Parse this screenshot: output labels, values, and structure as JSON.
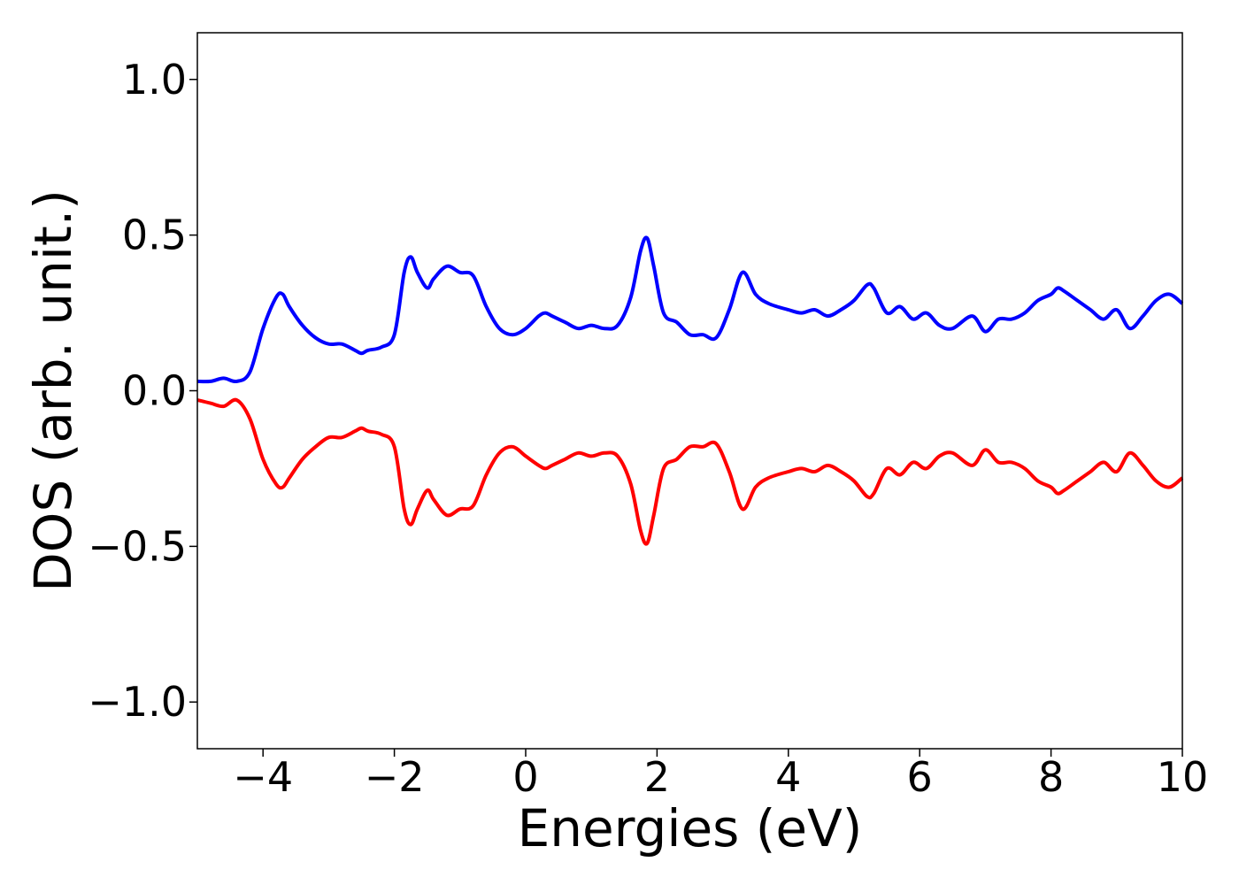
{
  "chart_data": {
    "type": "line",
    "title": "",
    "xlabel": "Energies (eV)",
    "ylabel": "DOS (arb. unit.)",
    "xlim": [
      -5,
      10
    ],
    "ylim": [
      -1.15,
      1.15
    ],
    "x_ticks": [
      -4,
      -2,
      0,
      2,
      4,
      6,
      8,
      10
    ],
    "x_tick_labels": [
      "−4",
      "−2",
      "0",
      "2",
      "4",
      "6",
      "8",
      "10"
    ],
    "y_ticks": [
      1.0,
      0.5,
      0.0,
      -0.5,
      -1.0
    ],
    "y_tick_labels": [
      "1.0",
      "0.5",
      "0.0",
      "−0.5",
      "−1.0"
    ],
    "grid": false,
    "legend": "none",
    "series": [
      {
        "color": "#0000ff",
        "x": [
          -5.0,
          -4.8,
          -4.6,
          -4.4,
          -4.2,
          -4.0,
          -3.8,
          -3.7,
          -3.6,
          -3.4,
          -3.2,
          -3.0,
          -2.8,
          -2.6,
          -2.5,
          -2.4,
          -2.2,
          -2.0,
          -1.85,
          -1.75,
          -1.65,
          -1.5,
          -1.4,
          -1.2,
          -1.0,
          -0.8,
          -0.6,
          -0.4,
          -0.2,
          0.0,
          0.2,
          0.3,
          0.4,
          0.6,
          0.8,
          1.0,
          1.2,
          1.4,
          1.6,
          1.75,
          1.85,
          1.95,
          2.1,
          2.3,
          2.5,
          2.7,
          2.9,
          3.1,
          3.3,
          3.5,
          3.7,
          4.0,
          4.2,
          4.4,
          4.6,
          4.8,
          5.0,
          5.2,
          5.3,
          5.5,
          5.7,
          5.9,
          6.1,
          6.3,
          6.5,
          6.8,
          7.0,
          7.2,
          7.4,
          7.6,
          7.8,
          8.0,
          8.1,
          8.2,
          8.4,
          8.6,
          8.8,
          9.0,
          9.2,
          9.4,
          9.6,
          9.8,
          10.0
        ],
        "values": [
          0.03,
          0.03,
          0.04,
          0.03,
          0.06,
          0.2,
          0.3,
          0.31,
          0.27,
          0.21,
          0.17,
          0.15,
          0.15,
          0.13,
          0.12,
          0.13,
          0.14,
          0.18,
          0.38,
          0.43,
          0.38,
          0.33,
          0.36,
          0.4,
          0.38,
          0.37,
          0.27,
          0.2,
          0.18,
          0.2,
          0.24,
          0.25,
          0.24,
          0.22,
          0.2,
          0.21,
          0.2,
          0.21,
          0.3,
          0.45,
          0.49,
          0.4,
          0.25,
          0.22,
          0.18,
          0.18,
          0.17,
          0.26,
          0.38,
          0.31,
          0.28,
          0.26,
          0.25,
          0.26,
          0.24,
          0.26,
          0.29,
          0.34,
          0.33,
          0.25,
          0.27,
          0.23,
          0.25,
          0.21,
          0.2,
          0.24,
          0.19,
          0.23,
          0.23,
          0.25,
          0.29,
          0.31,
          0.33,
          0.32,
          0.29,
          0.26,
          0.23,
          0.26,
          0.2,
          0.24,
          0.29,
          0.31,
          0.28
        ]
      },
      {
        "color": "#ff0000",
        "x": [
          -5.0,
          -4.8,
          -4.6,
          -4.4,
          -4.2,
          -4.0,
          -3.8,
          -3.7,
          -3.6,
          -3.4,
          -3.2,
          -3.0,
          -2.8,
          -2.6,
          -2.5,
          -2.4,
          -2.2,
          -2.0,
          -1.85,
          -1.75,
          -1.65,
          -1.5,
          -1.4,
          -1.2,
          -1.0,
          -0.8,
          -0.6,
          -0.4,
          -0.2,
          0.0,
          0.2,
          0.3,
          0.4,
          0.6,
          0.8,
          1.0,
          1.2,
          1.4,
          1.6,
          1.75,
          1.85,
          1.95,
          2.1,
          2.3,
          2.5,
          2.7,
          2.9,
          3.1,
          3.3,
          3.5,
          3.7,
          4.0,
          4.2,
          4.4,
          4.6,
          4.8,
          5.0,
          5.2,
          5.3,
          5.5,
          5.7,
          5.9,
          6.1,
          6.3,
          6.5,
          6.8,
          7.0,
          7.2,
          7.4,
          7.6,
          7.8,
          8.0,
          8.1,
          8.2,
          8.4,
          8.6,
          8.8,
          9.0,
          9.2,
          9.4,
          9.6,
          9.8,
          10.0
        ],
        "values": [
          -0.03,
          -0.04,
          -0.05,
          -0.03,
          -0.09,
          -0.22,
          -0.3,
          -0.31,
          -0.28,
          -0.22,
          -0.18,
          -0.15,
          -0.15,
          -0.13,
          -0.12,
          -0.13,
          -0.14,
          -0.18,
          -0.38,
          -0.43,
          -0.38,
          -0.32,
          -0.35,
          -0.4,
          -0.38,
          -0.37,
          -0.27,
          -0.2,
          -0.18,
          -0.21,
          -0.24,
          -0.25,
          -0.24,
          -0.22,
          -0.2,
          -0.21,
          -0.2,
          -0.21,
          -0.3,
          -0.45,
          -0.49,
          -0.4,
          -0.25,
          -0.22,
          -0.18,
          -0.18,
          -0.17,
          -0.26,
          -0.38,
          -0.31,
          -0.28,
          -0.26,
          -0.25,
          -0.26,
          -0.24,
          -0.26,
          -0.29,
          -0.34,
          -0.33,
          -0.25,
          -0.27,
          -0.23,
          -0.25,
          -0.21,
          -0.2,
          -0.24,
          -0.19,
          -0.23,
          -0.23,
          -0.25,
          -0.29,
          -0.31,
          -0.33,
          -0.32,
          -0.29,
          -0.26,
          -0.23,
          -0.26,
          -0.2,
          -0.24,
          -0.29,
          -0.31,
          -0.28
        ]
      }
    ]
  }
}
